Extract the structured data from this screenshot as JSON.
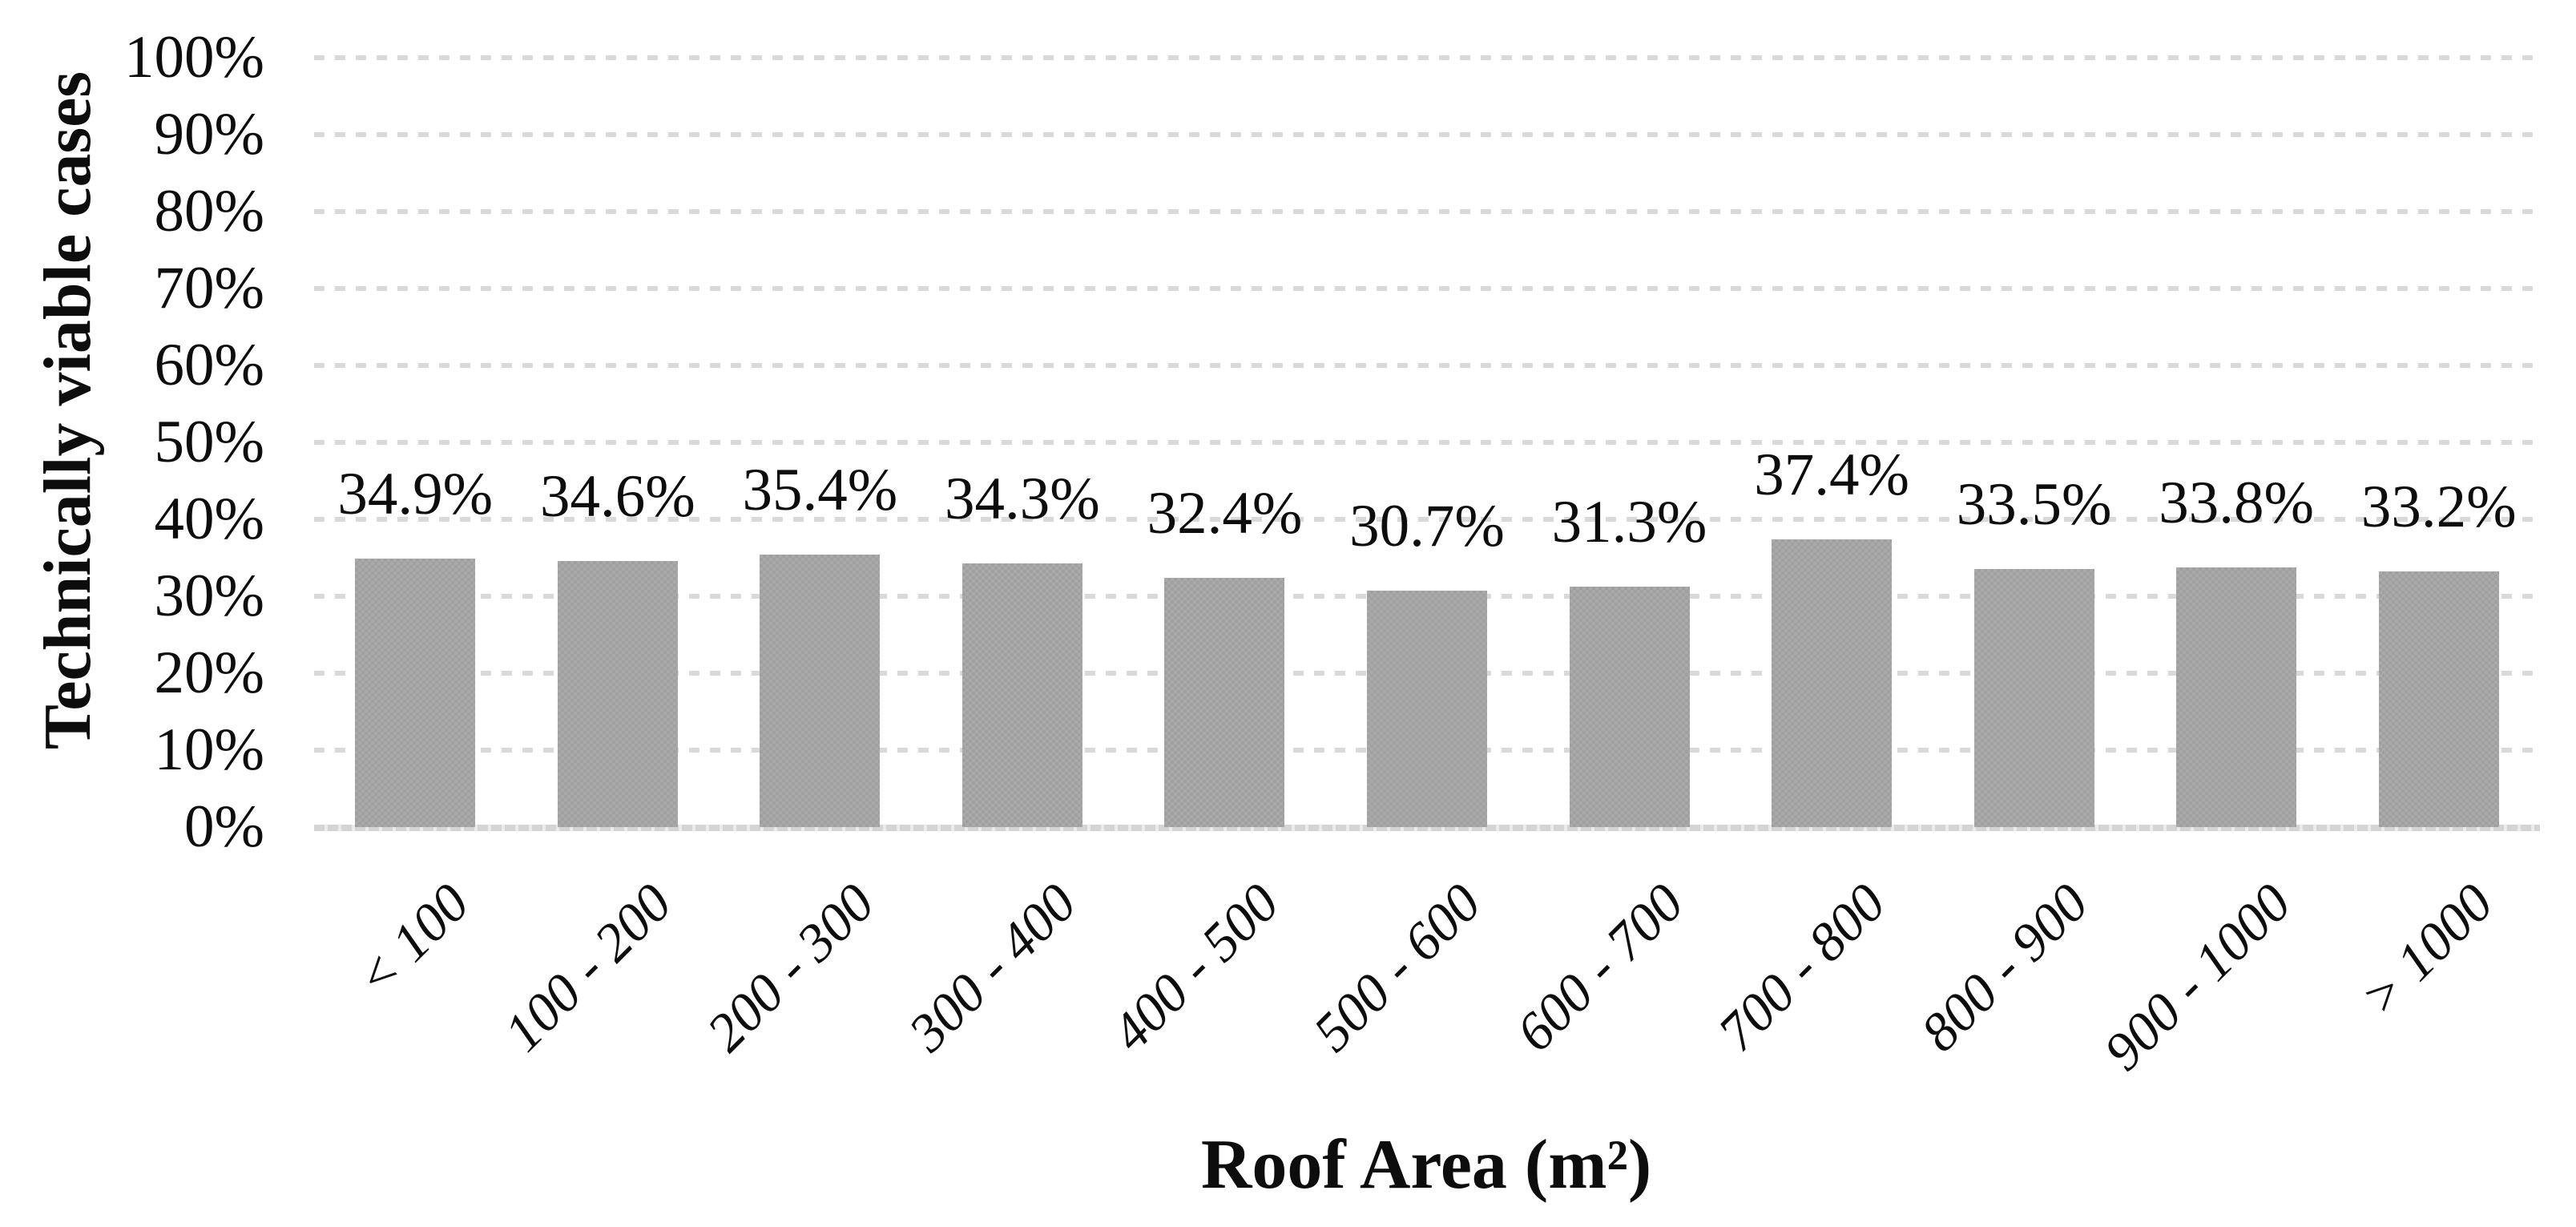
{
  "chart_data": {
    "type": "bar",
    "title": "",
    "xlabel": "Roof Area (m²)",
    "ylabel": "Technically viable cases",
    "categories": [
      "< 100",
      "100 - 200",
      "200 - 300",
      "300 - 400",
      "400 - 500",
      "500 - 600",
      "600 - 700",
      "700 - 800",
      "800 - 900",
      "900 - 1000",
      "> 1000"
    ],
    "values": [
      34.9,
      34.6,
      35.4,
      34.3,
      32.4,
      30.7,
      31.3,
      37.4,
      33.5,
      33.8,
      33.2
    ],
    "value_labels": [
      "34.9%",
      "34.6%",
      "35.4%",
      "34.3%",
      "32.4%",
      "30.7%",
      "31.3%",
      "37.4%",
      "33.5%",
      "33.8%",
      "33.2%"
    ],
    "ylim": [
      0,
      100
    ],
    "ytick_step": 10,
    "ytick_labels": [
      "0%",
      "10%",
      "20%",
      "30%",
      "40%",
      "50%",
      "60%",
      "70%",
      "80%",
      "90%",
      "100%"
    ],
    "grid": "on",
    "legend": "none",
    "bar_color": "#a9a9a9",
    "gridline_color": "#d9d9d9",
    "text_color": "#0d0d0d"
  }
}
